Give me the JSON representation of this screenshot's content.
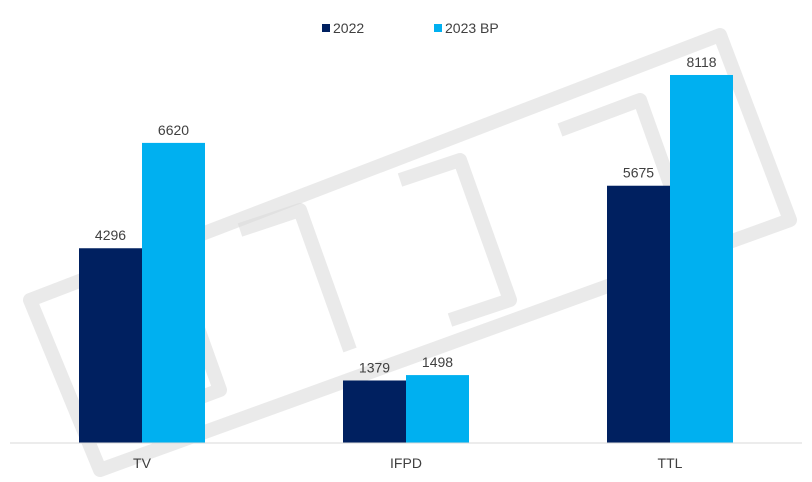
{
  "chart_data": {
    "type": "bar",
    "categories": [
      "TV",
      "IFPD",
      "TTL"
    ],
    "series": [
      {
        "name": "2022",
        "values": [
          4296,
          1379,
          5675
        ],
        "color": "#002060"
      },
      {
        "name": "2023 BP",
        "values": [
          6620,
          1498,
          8118
        ],
        "color": "#00B0F0"
      }
    ],
    "ylim": [
      0,
      9000
    ],
    "grid": false,
    "legend_position": "top-center",
    "title": "",
    "xlabel": "",
    "ylabel": ""
  },
  "colors": {
    "axis_line": "#d9d9d9",
    "text": "#404040",
    "watermark": "#d9d9d9"
  }
}
